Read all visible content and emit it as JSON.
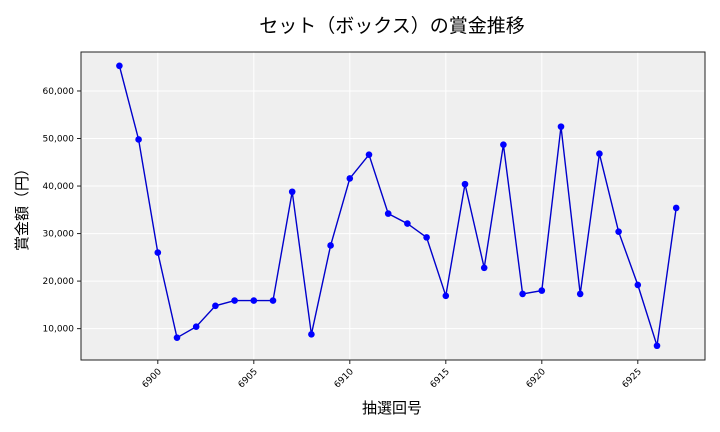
{
  "chart_data": {
    "type": "line",
    "title": "セット（ボックス）の賞金推移",
    "xlabel": "抽選回号",
    "ylabel": "賞金額（円）",
    "x": [
      6898,
      6899,
      6900,
      6901,
      6902,
      6903,
      6904,
      6905,
      6906,
      6907,
      6908,
      6909,
      6910,
      6911,
      6912,
      6913,
      6914,
      6915,
      6916,
      6917,
      6918,
      6919,
      6920,
      6921,
      6922,
      6923,
      6924,
      6925,
      6926,
      6927
    ],
    "series": [
      {
        "name": "セット（ボックス）",
        "values": [
          65300,
          49800,
          26000,
          8100,
          10400,
          14800,
          15900,
          15900,
          15900,
          38800,
          8800,
          27500,
          41600,
          46600,
          34200,
          32100,
          29200,
          16900,
          40400,
          22800,
          48700,
          17300,
          18000,
          52500,
          17300,
          46800,
          30400,
          19200,
          6400,
          35400
        ]
      }
    ],
    "xticks": [
      6900,
      6905,
      6910,
      6915,
      6920,
      6925
    ],
    "xtick_labels": [
      "6900",
      "6905",
      "6910",
      "6915",
      "6920",
      "6925"
    ],
    "yticks": [
      10000,
      20000,
      30000,
      40000,
      50000,
      60000
    ],
    "ytick_labels": [
      "10,000",
      "20,000",
      "30,000",
      "40,000",
      "50,000",
      "60,000"
    ],
    "xlim": [
      6896,
      6928.5
    ],
    "ylim": [
      3400,
      68200
    ],
    "grid": true,
    "legend": null,
    "colors": {
      "line": "#0000cc",
      "marker": "#0000ff",
      "plot_background": "#efefef",
      "grid": "#ffffff",
      "frame": "#222222"
    }
  }
}
